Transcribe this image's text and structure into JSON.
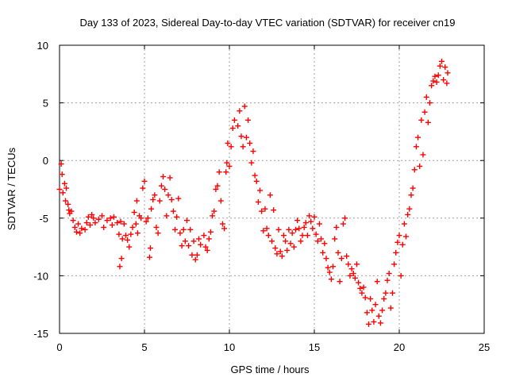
{
  "chart_data": {
    "type": "scatter",
    "title": "Day 133 of 2023, Sidereal Day-to-day VTEC variation (SDTVAR) for receiver cn19",
    "xlabel": "GPS time / hours",
    "ylabel": "SDTVAR / TECUs",
    "xlim": [
      0,
      25
    ],
    "ylim": [
      -15,
      10
    ],
    "x_ticks": [
      0,
      5,
      10,
      15,
      20,
      25
    ],
    "y_ticks": [
      -15,
      -10,
      -5,
      0,
      5,
      10
    ],
    "x_tick_labels": [
      "0",
      "5",
      "10",
      "15",
      "20",
      "25"
    ],
    "y_tick_labels": [
      "-15",
      "-10",
      "-5",
      "0",
      "5",
      "10"
    ],
    "grid": true,
    "marker": "+",
    "series": [
      {
        "name": "SDTVAR",
        "color": "#ff0000",
        "points": [
          [
            0.0,
            -2.5
          ],
          [
            0.1,
            -0.3
          ],
          [
            0.15,
            -1.2
          ],
          [
            0.2,
            -2.8
          ],
          [
            0.3,
            -2.0
          ],
          [
            0.35,
            -3.5
          ],
          [
            0.4,
            -2.4
          ],
          [
            0.5,
            -3.8
          ],
          [
            0.55,
            -4.3
          ],
          [
            0.6,
            -4.6
          ],
          [
            0.7,
            -4.4
          ],
          [
            0.8,
            -5.2
          ],
          [
            0.9,
            -5.8
          ],
          [
            1.0,
            -6.2
          ],
          [
            1.1,
            -5.5
          ],
          [
            1.2,
            -6.3
          ],
          [
            1.3,
            -5.9
          ],
          [
            1.5,
            -6.0
          ],
          [
            1.6,
            -5.4
          ],
          [
            1.7,
            -4.9
          ],
          [
            1.8,
            -5.6
          ],
          [
            1.9,
            -4.7
          ],
          [
            2.0,
            -5.0
          ],
          [
            2.1,
            -5.4
          ],
          [
            2.3,
            -5.1
          ],
          [
            2.5,
            -4.8
          ],
          [
            2.6,
            -5.8
          ],
          [
            2.8,
            -5.2
          ],
          [
            3.0,
            -5.0
          ],
          [
            3.1,
            -5.6
          ],
          [
            3.2,
            -4.9
          ],
          [
            3.4,
            -5.4
          ],
          [
            3.5,
            -6.4
          ],
          [
            3.55,
            -9.2
          ],
          [
            3.6,
            -5.3
          ],
          [
            3.65,
            -8.5
          ],
          [
            3.7,
            -6.8
          ],
          [
            3.8,
            -5.5
          ],
          [
            3.9,
            -6.5
          ],
          [
            4.0,
            -6.9
          ],
          [
            4.1,
            -7.5
          ],
          [
            4.2,
            -6.4
          ],
          [
            4.3,
            -5.8
          ],
          [
            4.4,
            -4.5
          ],
          [
            4.5,
            -5.5
          ],
          [
            4.55,
            -3.5
          ],
          [
            4.6,
            -6.3
          ],
          [
            4.7,
            -4.8
          ],
          [
            4.8,
            -5.0
          ],
          [
            4.9,
            -2.4
          ],
          [
            5.0,
            -1.8
          ],
          [
            5.1,
            -5.3
          ],
          [
            5.2,
            -5.0
          ],
          [
            5.3,
            -8.4
          ],
          [
            5.35,
            -7.6
          ],
          [
            5.4,
            -4.2
          ],
          [
            5.5,
            -3.4
          ],
          [
            5.6,
            -3.0
          ],
          [
            5.7,
            -5.8
          ],
          [
            5.8,
            -6.3
          ],
          [
            5.9,
            -3.5
          ],
          [
            6.0,
            -2.2
          ],
          [
            6.1,
            -1.4
          ],
          [
            6.2,
            -2.5
          ],
          [
            6.3,
            -4.8
          ],
          [
            6.4,
            -3.0
          ],
          [
            6.5,
            -1.5
          ],
          [
            6.6,
            -3.4
          ],
          [
            6.7,
            -4.4
          ],
          [
            6.8,
            -6.0
          ],
          [
            6.9,
            -4.9
          ],
          [
            7.0,
            -3.3
          ],
          [
            7.1,
            -6.3
          ],
          [
            7.2,
            -7.4
          ],
          [
            7.3,
            -6.0
          ],
          [
            7.4,
            -7.0
          ],
          [
            7.5,
            -5.2
          ],
          [
            7.6,
            -7.4
          ],
          [
            7.7,
            -6.0
          ],
          [
            7.8,
            -8.2
          ],
          [
            7.9,
            -7.0
          ],
          [
            8.0,
            -8.6
          ],
          [
            8.1,
            -8.2
          ],
          [
            8.2,
            -6.8
          ],
          [
            8.3,
            -7.3
          ],
          [
            8.5,
            -6.5
          ],
          [
            8.6,
            -7.5
          ],
          [
            8.7,
            -7.8
          ],
          [
            8.8,
            -6.8
          ],
          [
            8.9,
            -6.2
          ],
          [
            9.0,
            -4.8
          ],
          [
            9.1,
            -4.4
          ],
          [
            9.2,
            -2.5
          ],
          [
            9.3,
            -2.2
          ],
          [
            9.4,
            -1.0
          ],
          [
            9.5,
            -3.5
          ],
          [
            9.6,
            -5.5
          ],
          [
            9.7,
            -5.9
          ],
          [
            9.8,
            -1.0
          ],
          [
            9.85,
            -0.2
          ],
          [
            9.9,
            1.5
          ],
          [
            10.0,
            -0.5
          ],
          [
            10.1,
            1.2
          ],
          [
            10.2,
            2.8
          ],
          [
            10.3,
            3.5
          ],
          [
            10.5,
            3.0
          ],
          [
            10.6,
            4.3
          ],
          [
            10.7,
            2.1
          ],
          [
            10.8,
            1.2
          ],
          [
            10.9,
            4.7
          ],
          [
            11.0,
            2.0
          ],
          [
            11.1,
            3.5
          ],
          [
            11.2,
            1.5
          ],
          [
            11.3,
            -0.2
          ],
          [
            11.4,
            0.8
          ],
          [
            11.5,
            -1.3
          ],
          [
            11.6,
            -1.8
          ],
          [
            11.7,
            -3.6
          ],
          [
            11.8,
            -2.6
          ],
          [
            11.9,
            -4.4
          ],
          [
            12.0,
            -6.1
          ],
          [
            12.1,
            -4.2
          ],
          [
            12.2,
            -5.9
          ],
          [
            12.3,
            -6.5
          ],
          [
            12.4,
            -3.0
          ],
          [
            12.5,
            -7.0
          ],
          [
            12.6,
            -4.3
          ],
          [
            12.7,
            -7.6
          ],
          [
            12.8,
            -8.1
          ],
          [
            12.9,
            -6.0
          ],
          [
            13.0,
            -7.9
          ],
          [
            13.1,
            -8.3
          ],
          [
            13.2,
            -6.5
          ],
          [
            13.3,
            -7.0
          ],
          [
            13.4,
            -7.8
          ],
          [
            13.5,
            -6.0
          ],
          [
            13.6,
            -7.2
          ],
          [
            13.7,
            -6.3
          ],
          [
            13.8,
            -7.5
          ],
          [
            13.9,
            -6.0
          ],
          [
            14.0,
            -5.2
          ],
          [
            14.1,
            -5.9
          ],
          [
            14.2,
            -7.0
          ],
          [
            14.3,
            -6.5
          ],
          [
            14.4,
            -5.8
          ],
          [
            14.5,
            -5.4
          ],
          [
            14.6,
            -6.5
          ],
          [
            14.7,
            -4.8
          ],
          [
            14.8,
            -5.3
          ],
          [
            14.9,
            -5.9
          ],
          [
            15.0,
            -4.9
          ],
          [
            15.1,
            -6.4
          ],
          [
            15.2,
            -7.0
          ],
          [
            15.3,
            -5.5
          ],
          [
            15.4,
            -6.8
          ],
          [
            15.5,
            -8.0
          ],
          [
            15.6,
            -7.2
          ],
          [
            15.7,
            -8.5
          ],
          [
            15.8,
            -9.3
          ],
          [
            15.9,
            -9.7
          ],
          [
            16.0,
            -10.3
          ],
          [
            16.1,
            -9.2
          ],
          [
            16.2,
            -6.8
          ],
          [
            16.3,
            -5.8
          ],
          [
            16.4,
            -8.0
          ],
          [
            16.5,
            -10.5
          ],
          [
            16.6,
            -8.5
          ],
          [
            16.7,
            -5.5
          ],
          [
            16.8,
            -5.0
          ],
          [
            16.9,
            -8.3
          ],
          [
            17.0,
            -9.0
          ],
          [
            17.1,
            -10.0
          ],
          [
            17.2,
            -9.4
          ],
          [
            17.3,
            -9.8
          ],
          [
            17.4,
            -10.2
          ],
          [
            17.5,
            -9.0
          ],
          [
            17.6,
            -10.6
          ],
          [
            17.7,
            -11.1
          ],
          [
            17.8,
            -11.5
          ],
          [
            17.9,
            -11.0
          ],
          [
            18.0,
            -11.9
          ],
          [
            18.1,
            -13.2
          ],
          [
            18.2,
            -14.2
          ],
          [
            18.3,
            -12.0
          ],
          [
            18.4,
            -13.0
          ],
          [
            18.5,
            -14.0
          ],
          [
            18.6,
            -12.5
          ],
          [
            18.7,
            -10.5
          ],
          [
            18.8,
            -13.5
          ],
          [
            18.9,
            -14.1
          ],
          [
            19.0,
            -13.0
          ],
          [
            19.1,
            -12.0
          ],
          [
            19.2,
            -11.5
          ],
          [
            19.3,
            -10.4
          ],
          [
            19.4,
            -9.8
          ],
          [
            19.5,
            -12.8
          ],
          [
            19.6,
            -11.5
          ],
          [
            19.7,
            -9.0
          ],
          [
            19.8,
            -8.0
          ],
          [
            19.9,
            -7.1
          ],
          [
            20.0,
            -6.5
          ],
          [
            20.1,
            -10.0
          ],
          [
            20.2,
            -7.3
          ],
          [
            20.3,
            -5.5
          ],
          [
            20.4,
            -6.6
          ],
          [
            20.5,
            -4.7
          ],
          [
            20.6,
            -4.2
          ],
          [
            20.7,
            -3.0
          ],
          [
            20.8,
            -2.4
          ],
          [
            20.9,
            -0.8
          ],
          [
            21.0,
            1.2
          ],
          [
            21.1,
            2.0
          ],
          [
            21.2,
            -0.5
          ],
          [
            21.3,
            3.5
          ],
          [
            21.4,
            0.5
          ],
          [
            21.5,
            4.2
          ],
          [
            21.6,
            5.5
          ],
          [
            21.7,
            3.3
          ],
          [
            21.8,
            5.0
          ],
          [
            21.9,
            6.5
          ],
          [
            22.0,
            6.9
          ],
          [
            22.1,
            7.3
          ],
          [
            22.2,
            6.8
          ],
          [
            22.3,
            7.4
          ],
          [
            22.4,
            8.2
          ],
          [
            22.5,
            8.6
          ],
          [
            22.6,
            7.0
          ],
          [
            22.7,
            8.1
          ],
          [
            22.8,
            6.7
          ],
          [
            22.85,
            7.6
          ]
        ]
      }
    ]
  }
}
